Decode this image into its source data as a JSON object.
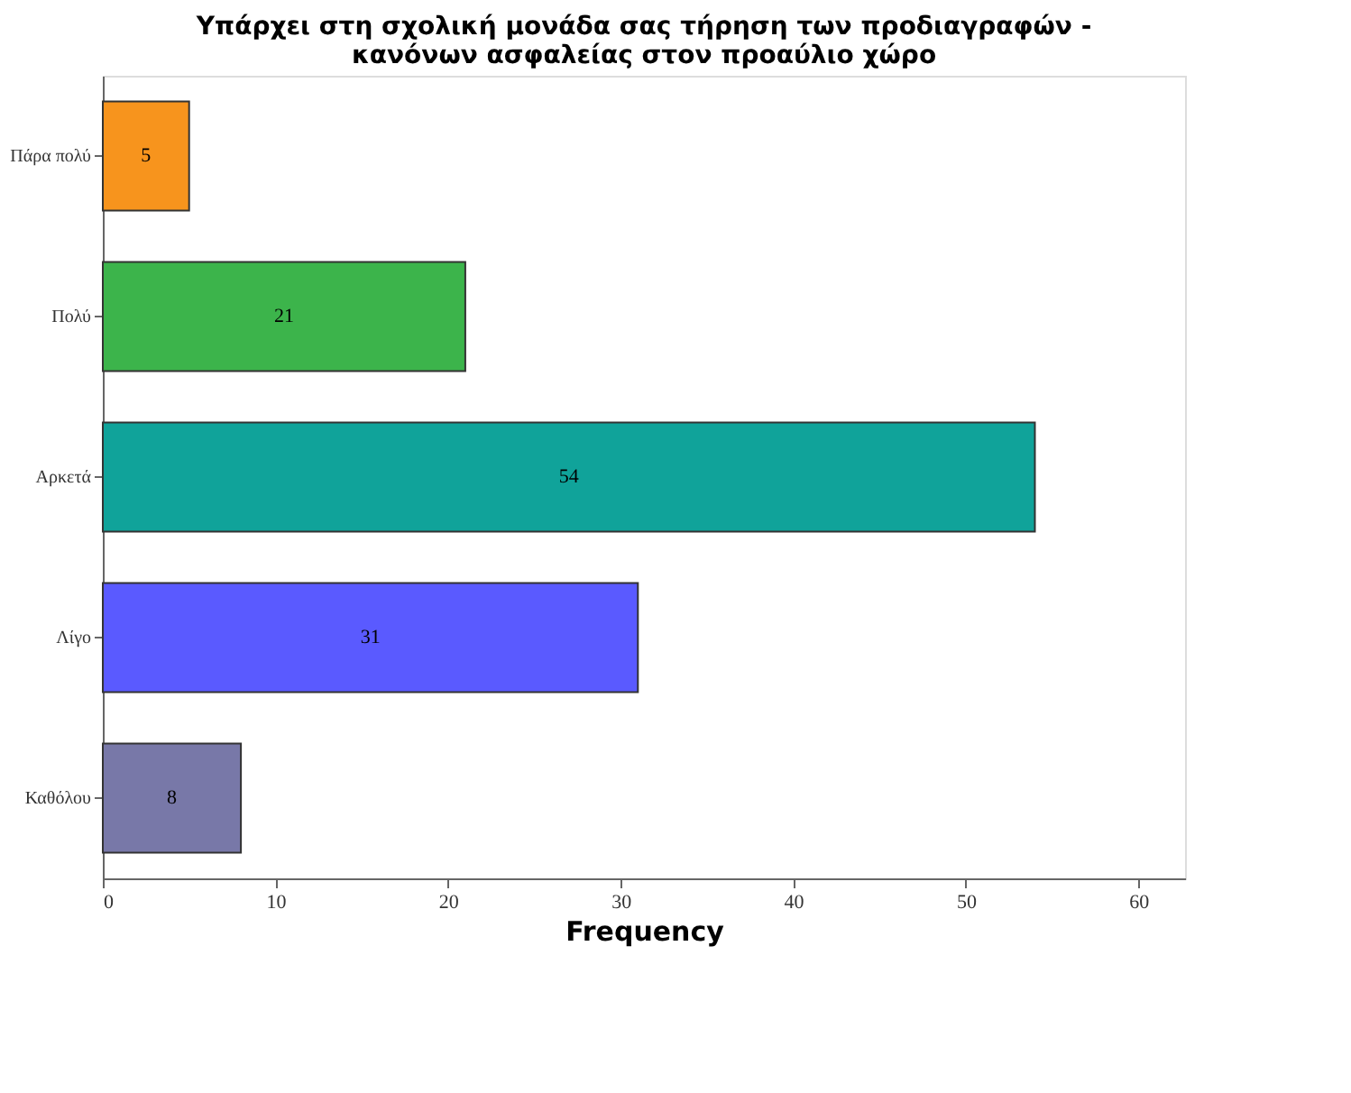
{
  "chart_data": {
    "type": "bar",
    "orientation": "horizontal",
    "title": "Υπάρχει στη σχολική μονάδα σας τήρηση των προδιαγραφών - κανόνων ασφαλείας στον προαύλιο χώρο",
    "categories": [
      "Πάρα πολύ",
      "Πολύ",
      "Αρκετά",
      "Λίγο",
      "Καθόλου"
    ],
    "values": [
      5,
      21,
      54,
      31,
      8
    ],
    "colors": [
      "#f7941d",
      "#3cb44b",
      "#10a39a",
      "#5a5aff",
      "#7878a8"
    ],
    "xlabel": "Frequency",
    "xlim": [
      0,
      62.7
    ],
    "xticks": [
      0,
      10,
      20,
      30,
      40,
      50,
      60
    ],
    "data_labels": true,
    "grid": false
  }
}
